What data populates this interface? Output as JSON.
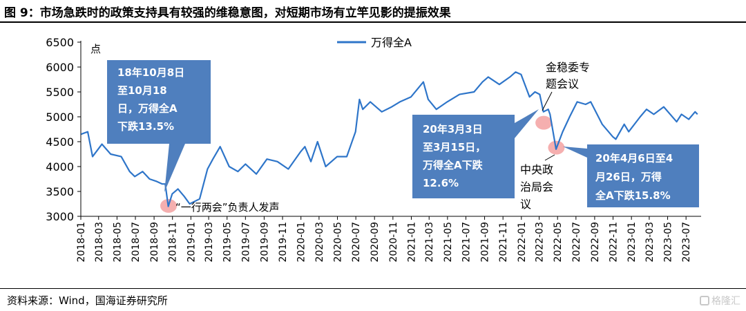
{
  "page": {
    "title": "图 9：市场急跌时的政策支持具有较强的维稳意图，对短期市场有立竿见影的提振效果",
    "source": "资料来源：Wind，国海证券研究所",
    "watermark": "格隆汇"
  },
  "chart_data": {
    "type": "line",
    "title": "",
    "xlabel": "",
    "ylabel": "点",
    "ylim": [
      3000,
      6500
    ],
    "yticks": [
      3000,
      3500,
      4000,
      4500,
      5000,
      5500,
      6000,
      6500
    ],
    "xticks": [
      "2018-01",
      "2018-03",
      "2018-05",
      "2018-07",
      "2018-09",
      "2018-11",
      "2019-01",
      "2019-03",
      "2019-05",
      "2019-07",
      "2019-09",
      "2019-11",
      "2020-01",
      "2020-03",
      "2020-05",
      "2020-07",
      "2020-09",
      "2020-11",
      "2021-01",
      "2021-03",
      "2021-05",
      "2021-07",
      "2021-09",
      "2021-11",
      "2022-01",
      "2022-03",
      "2022-05",
      "2022-07",
      "2022-09",
      "2022-11",
      "2023-01",
      "2023-03",
      "2023-05",
      "2023-07"
    ],
    "grid": false,
    "legend": "top-center",
    "series": [
      {
        "name": "万得全A",
        "color": "#2e75c9",
        "x": [
          "2018-01-02",
          "2018-01-24",
          "2018-02-09",
          "2018-03-12",
          "2018-04-10",
          "2018-05-15",
          "2018-06-12",
          "2018-06-29",
          "2018-07-25",
          "2018-08-17",
          "2018-09-10",
          "2018-09-28",
          "2018-10-08",
          "2018-10-18",
          "2018-10-31",
          "2018-11-19",
          "2018-12-10",
          "2018-12-28",
          "2019-01-30",
          "2019-02-25",
          "2019-03-15",
          "2019-04-08",
          "2019-05-08",
          "2019-06-06",
          "2019-07-01",
          "2019-08-06",
          "2019-09-10",
          "2019-10-15",
          "2019-11-20",
          "2019-12-31",
          "2020-01-14",
          "2020-02-03",
          "2020-02-25",
          "2020-03-23",
          "2020-04-30",
          "2020-06-01",
          "2020-06-30",
          "2020-07-13",
          "2020-07-24",
          "2020-08-18",
          "2020-09-25",
          "2020-10-28",
          "2020-11-24",
          "2020-12-31",
          "2021-02-10",
          "2021-02-26",
          "2021-03-25",
          "2021-04-30",
          "2021-06-10",
          "2021-07-28",
          "2021-08-25",
          "2021-09-13",
          "2021-10-20",
          "2021-11-24",
          "2021-12-13",
          "2021-12-31",
          "2022-01-28",
          "2022-02-15",
          "2022-03-03",
          "2022-03-15",
          "2022-03-31",
          "2022-04-06",
          "2022-04-26",
          "2022-05-18",
          "2022-06-10",
          "2022-07-05",
          "2022-08-02",
          "2022-08-19",
          "2022-09-26",
          "2022-10-31",
          "2022-11-10",
          "2022-12-08",
          "2022-12-23",
          "2023-01-30",
          "2023-02-20",
          "2023-03-16",
          "2023-04-18",
          "2023-05-31",
          "2023-06-16",
          "2023-07-10",
          "2023-07-31",
          "2023-08-08"
        ],
        "values": [
          4650,
          4700,
          4200,
          4450,
          4250,
          4200,
          3900,
          3800,
          3900,
          3750,
          3700,
          3650,
          3650,
          3200,
          3450,
          3550,
          3400,
          3250,
          3350,
          3950,
          4150,
          4400,
          4000,
          3900,
          4050,
          3850,
          4150,
          4100,
          3950,
          4300,
          4400,
          4100,
          4500,
          4000,
          4200,
          4200,
          4700,
          5350,
          5150,
          5300,
          5100,
          5200,
          5300,
          5400,
          5700,
          5350,
          5150,
          5300,
          5450,
          5500,
          5700,
          5800,
          5650,
          5800,
          5900,
          5850,
          5400,
          5500,
          5450,
          5100,
          5150,
          5050,
          4350,
          4700,
          5000,
          5300,
          5250,
          5300,
          4850,
          4600,
          4550,
          4850,
          4700,
          5000,
          5150,
          5050,
          5200,
          4900,
          5050,
          4950,
          5100,
          5050
        ]
      }
    ],
    "annotations": [
      {
        "id": "anno1",
        "text": [
          "18年10月8日",
          "至10月18",
          "日，万得全A",
          "下跌13.5%"
        ]
      },
      {
        "id": "anno2",
        "text": [
          "20年3月3日",
          "至3月15日，",
          "万得全A下跌",
          "12.6%"
        ]
      },
      {
        "id": "anno3",
        "text": [
          "20年4月6日至4",
          "月26日，万得",
          "全A下跌15.8%"
        ]
      },
      {
        "id": "event1",
        "text": [
          "“一行两会”负责人发声"
        ]
      },
      {
        "id": "event2",
        "text": [
          "金稳委专",
          "题会议"
        ]
      },
      {
        "id": "event3",
        "text": [
          "中央政",
          "治局会",
          "议"
        ]
      }
    ],
    "highlights": [
      {
        "date": "2018-10-19",
        "value": 3210
      },
      {
        "date": "2022-03-16",
        "value": 4880
      },
      {
        "date": "2022-04-27",
        "value": 4380
      }
    ],
    "colors": {
      "line": "#2e75c9",
      "callout_fill": "#4f7fbe",
      "callout_text": "#ffffff",
      "highlight": "#f4a6a6"
    }
  }
}
